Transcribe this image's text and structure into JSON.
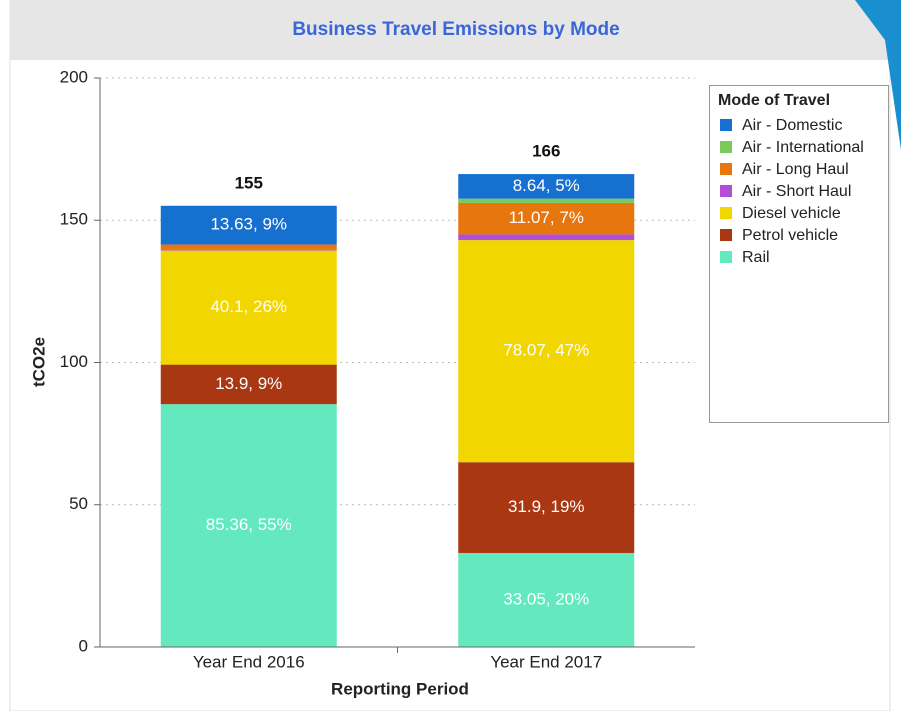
{
  "chart_data": {
    "type": "stacked_bar",
    "title": "Business Travel Emissions by Mode",
    "x_label": "Reporting Period",
    "y_label": "tCO2e",
    "legend_title": "Mode of Travel",
    "categories": [
      "Year End 2016",
      "Year End 2017"
    ],
    "series": [
      {
        "name": "Air - Domestic",
        "color": "#1570d0",
        "values": [
          13.63,
          8.64
        ],
        "value_labels": [
          "13.63, 9%",
          "8.64, 5%"
        ]
      },
      {
        "name": "Air - International",
        "color": "#7ac95a",
        "values": [
          0,
          1.5
        ],
        "value_labels": [
          null,
          null
        ]
      },
      {
        "name": "Air - Long Haul",
        "color": "#e8760e",
        "values": [
          1.8,
          11.07
        ],
        "value_labels": [
          null,
          "11.07, 7%"
        ]
      },
      {
        "name": "Air - Short Haul",
        "color": "#b04ed8",
        "values": [
          0.3,
          2
        ],
        "value_labels": [
          null,
          null
        ]
      },
      {
        "name": "Diesel vehicle",
        "color": "#f2d600",
        "values": [
          40.1,
          78.07
        ],
        "value_labels": [
          "40.1, 26%",
          "78.07, 47%"
        ]
      },
      {
        "name": "Petrol vehicle",
        "color": "#a83712",
        "values": [
          13.9,
          31.9
        ],
        "value_labels": [
          "13.9, 9%",
          "31.9, 19%"
        ]
      },
      {
        "name": "Rail",
        "color": "#64e8be",
        "values": [
          85.36,
          33.05
        ],
        "value_labels": [
          "85.36, 55%",
          "33.05, 20%"
        ]
      }
    ],
    "totals": [
      155,
      166
    ],
    "ylim": [
      0,
      200
    ],
    "yticks": [
      0,
      50,
      100,
      150,
      200
    ],
    "grid": true,
    "legend": "right"
  }
}
